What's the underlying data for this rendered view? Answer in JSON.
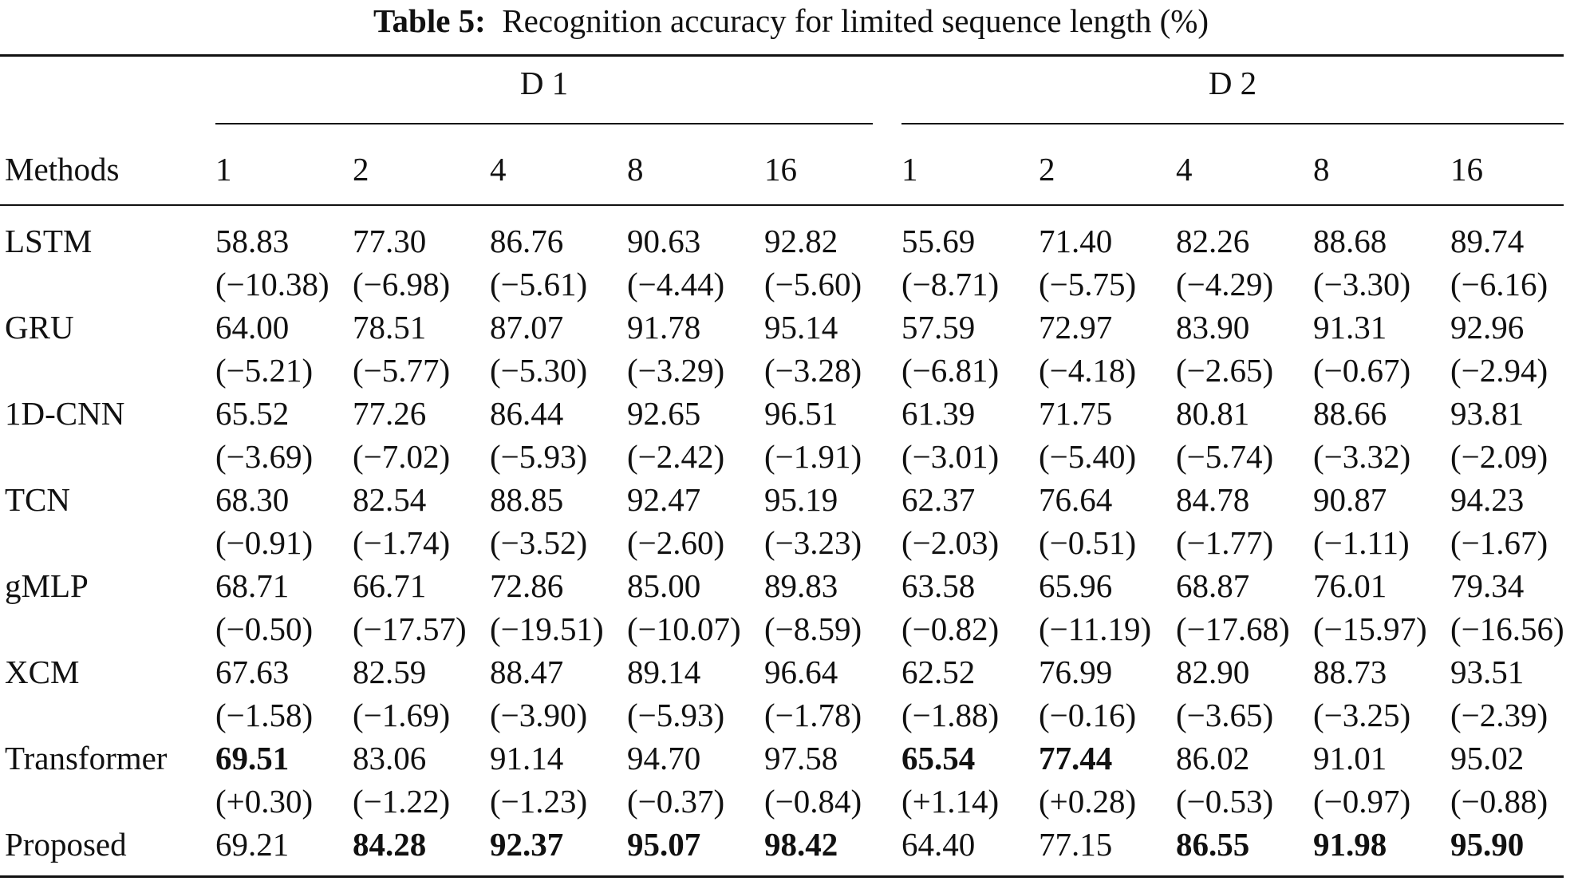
{
  "caption": {
    "label": "Table 5:",
    "text": "Recognition accuracy for limited sequence length (%)"
  },
  "header": {
    "methods_label": "Methods",
    "groups": [
      "D 1",
      "D 2"
    ],
    "columns": [
      "1",
      "2",
      "4",
      "8",
      "16",
      "1",
      "2",
      "4",
      "8",
      "16"
    ]
  },
  "rows": [
    {
      "method": "LSTM",
      "values": [
        "58.83",
        "77.30",
        "86.76",
        "90.63",
        "92.82",
        "55.69",
        "71.40",
        "82.26",
        "88.68",
        "89.74"
      ],
      "diffs": [
        "(−10.38)",
        "(−6.98)",
        "(−5.61)",
        "(−4.44)",
        "(−5.60)",
        "(−8.71)",
        "(−5.75)",
        "(−4.29)",
        "(−3.30)",
        "(−6.16)"
      ],
      "bold": []
    },
    {
      "method": "GRU",
      "values": [
        "64.00",
        "78.51",
        "87.07",
        "91.78",
        "95.14",
        "57.59",
        "72.97",
        "83.90",
        "91.31",
        "92.96"
      ],
      "diffs": [
        "(−5.21)",
        "(−5.77)",
        "(−5.30)",
        "(−3.29)",
        "(−3.28)",
        "(−6.81)",
        "(−4.18)",
        "(−2.65)",
        "(−0.67)",
        "(−2.94)"
      ],
      "bold": []
    },
    {
      "method": "1D-CNN",
      "values": [
        "65.52",
        "77.26",
        "86.44",
        "92.65",
        "96.51",
        "61.39",
        "71.75",
        "80.81",
        "88.66",
        "93.81"
      ],
      "diffs": [
        "(−3.69)",
        "(−7.02)",
        "(−5.93)",
        "(−2.42)",
        "(−1.91)",
        "(−3.01)",
        "(−5.40)",
        "(−5.74)",
        "(−3.32)",
        "(−2.09)"
      ],
      "bold": []
    },
    {
      "method": "TCN",
      "values": [
        "68.30",
        "82.54",
        "88.85",
        "92.47",
        "95.19",
        "62.37",
        "76.64",
        "84.78",
        "90.87",
        "94.23"
      ],
      "diffs": [
        "(−0.91)",
        "(−1.74)",
        "(−3.52)",
        "(−2.60)",
        "(−3.23)",
        "(−2.03)",
        "(−0.51)",
        "(−1.77)",
        "(−1.11)",
        "(−1.67)"
      ],
      "bold": []
    },
    {
      "method": "gMLP",
      "values": [
        "68.71",
        "66.71",
        "72.86",
        "85.00",
        "89.83",
        "63.58",
        "65.96",
        "68.87",
        "76.01",
        "79.34"
      ],
      "diffs": [
        "(−0.50)",
        "(−17.57)",
        "(−19.51)",
        "(−10.07)",
        "(−8.59)",
        "(−0.82)",
        "(−11.19)",
        "(−17.68)",
        "(−15.97)",
        "(−16.56)"
      ],
      "bold": []
    },
    {
      "method": "XCM",
      "values": [
        "67.63",
        "82.59",
        "88.47",
        "89.14",
        "96.64",
        "62.52",
        "76.99",
        "82.90",
        "88.73",
        "93.51"
      ],
      "diffs": [
        "(−1.58)",
        "(−1.69)",
        "(−3.90)",
        "(−5.93)",
        "(−1.78)",
        "(−1.88)",
        "(−0.16)",
        "(−3.65)",
        "(−3.25)",
        "(−2.39)"
      ],
      "bold": []
    },
    {
      "method": "Transformer",
      "values": [
        "69.51",
        "83.06",
        "91.14",
        "94.70",
        "97.58",
        "65.54",
        "77.44",
        "86.02",
        "91.01",
        "95.02"
      ],
      "diffs": [
        "(+0.30)",
        "(−1.22)",
        "(−1.23)",
        "(−0.37)",
        "(−0.84)",
        "(+1.14)",
        "(+0.28)",
        "(−0.53)",
        "(−0.97)",
        "(−0.88)"
      ],
      "bold": [
        0,
        5,
        6
      ]
    },
    {
      "method": "Proposed",
      "values": [
        "69.21",
        "84.28",
        "92.37",
        "95.07",
        "98.42",
        "64.40",
        "77.15",
        "86.55",
        "91.98",
        "95.90"
      ],
      "diffs": [],
      "bold": [
        1,
        2,
        3,
        4,
        7,
        8,
        9
      ]
    }
  ]
}
